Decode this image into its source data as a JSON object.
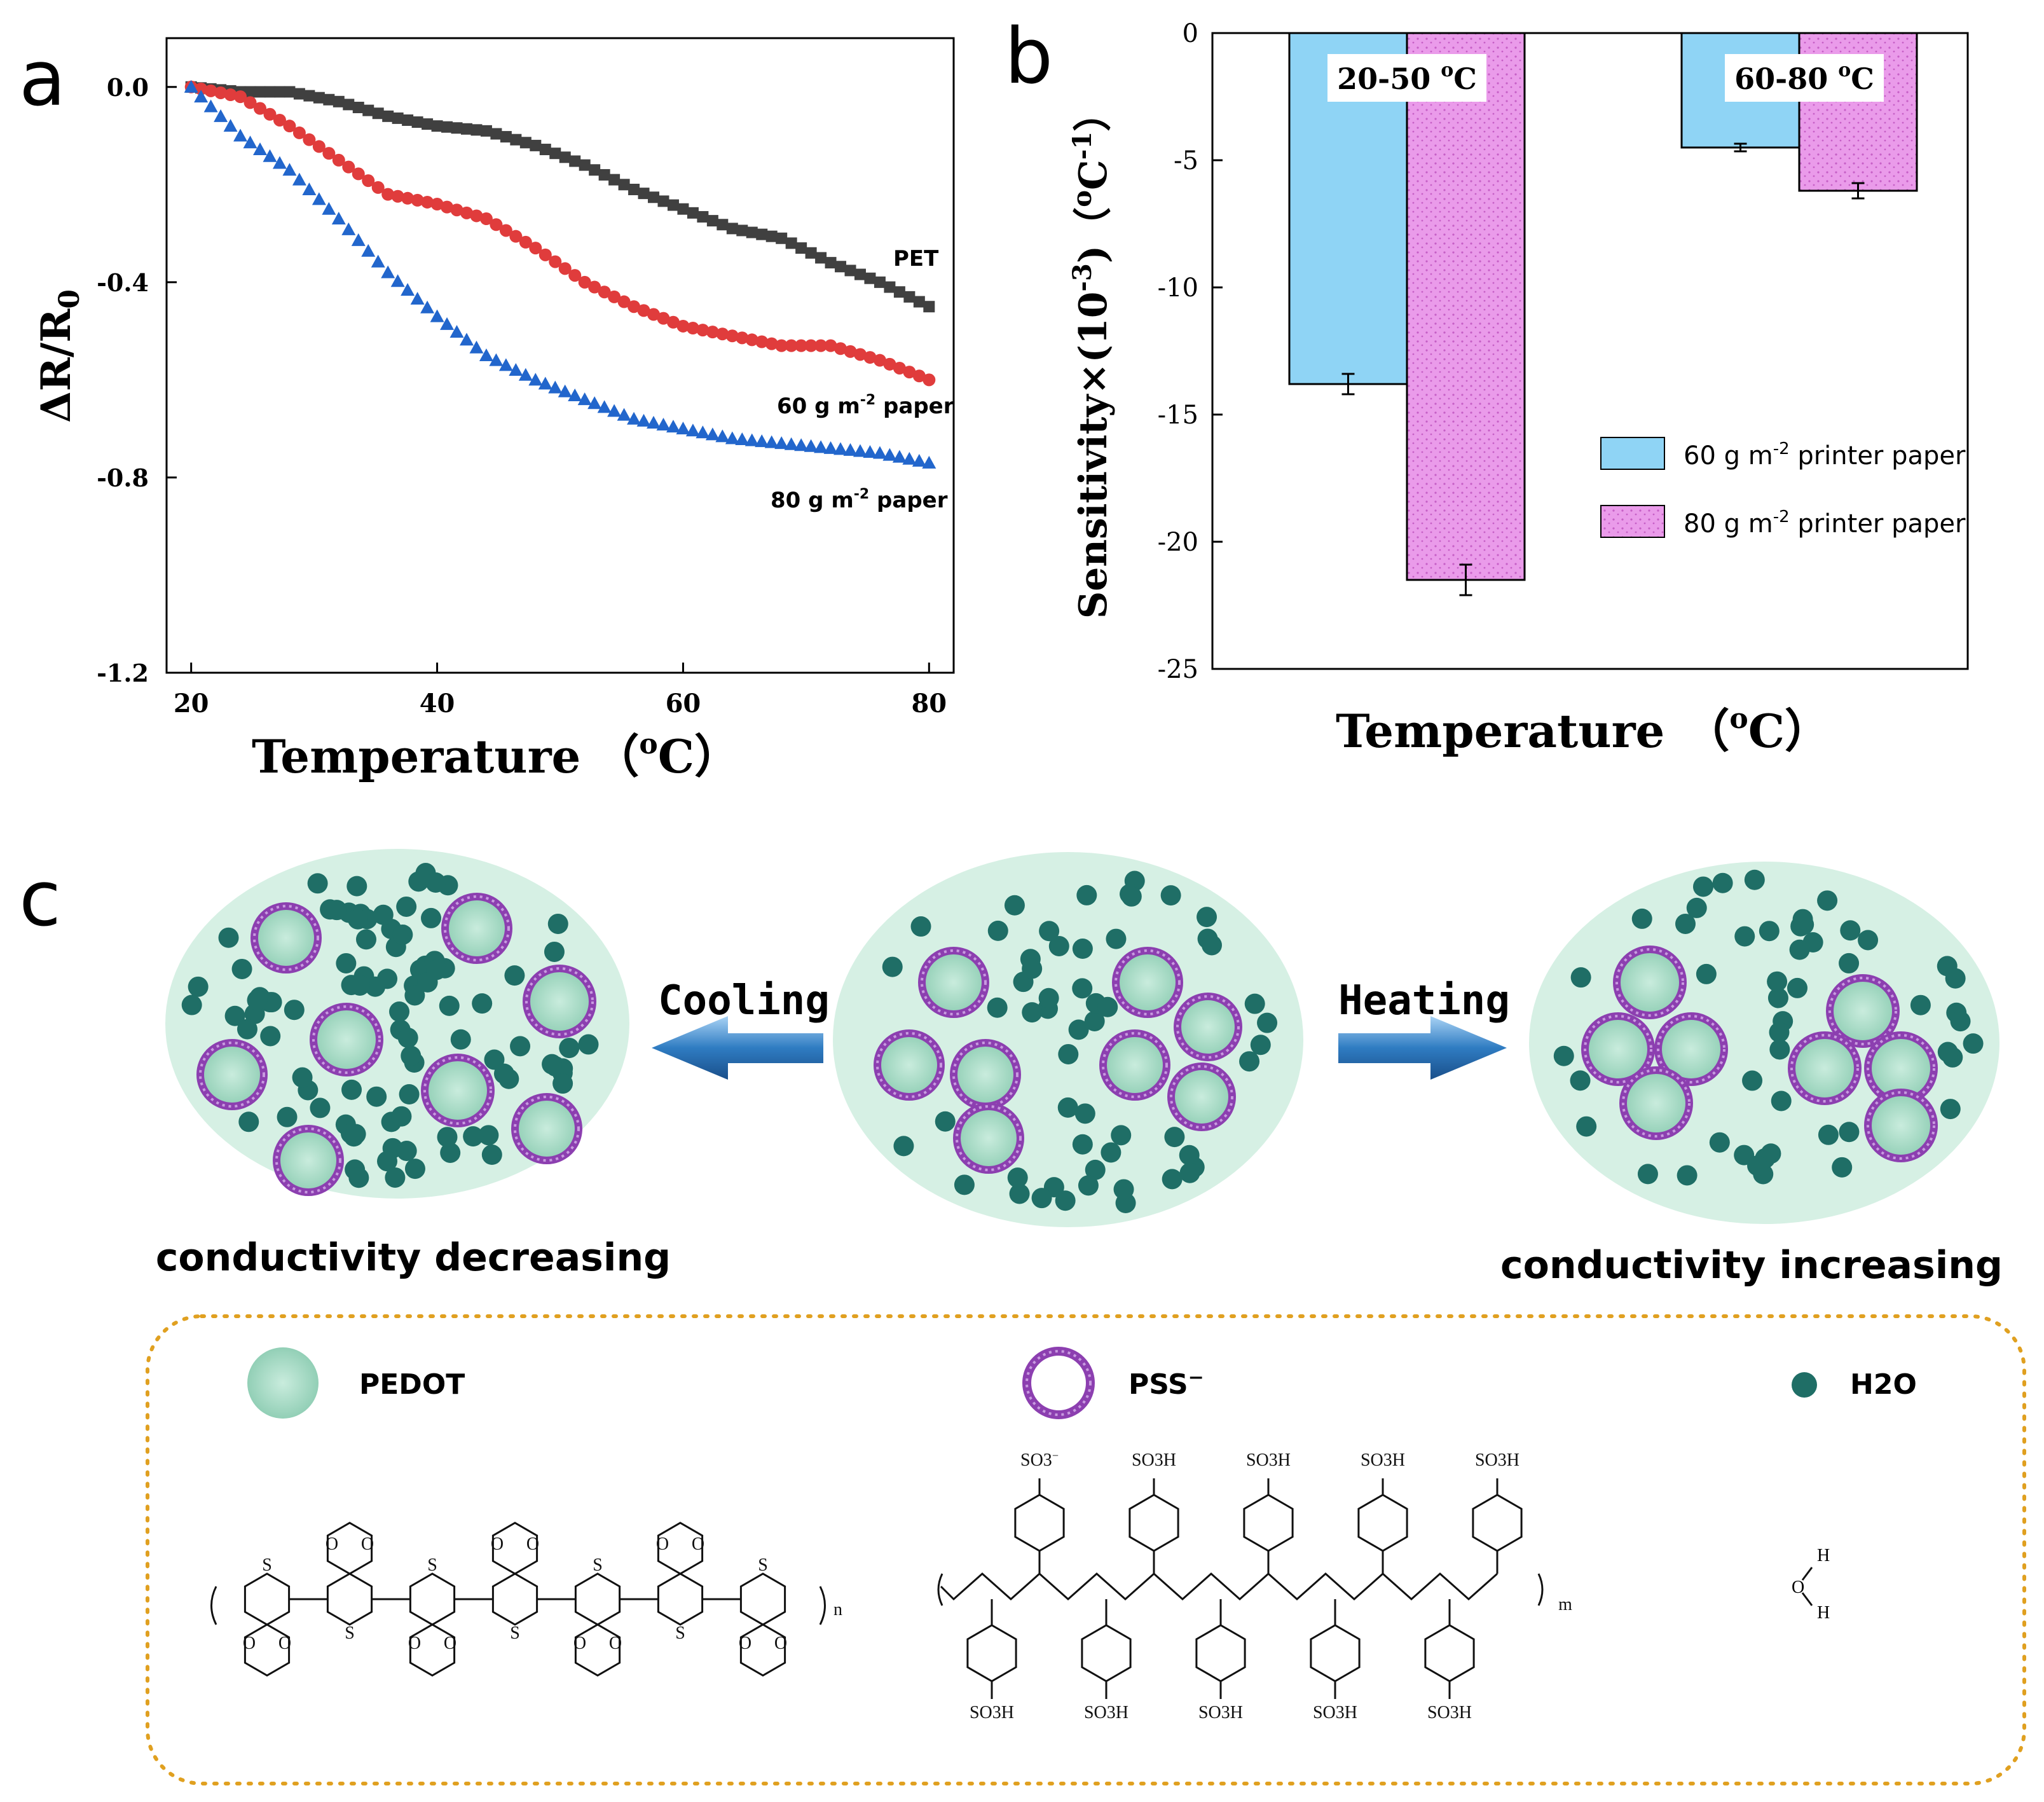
{
  "panels": {
    "a": "a",
    "b": "b",
    "c": "c"
  },
  "chart_data": [
    {
      "type": "scatter",
      "xlabel": "Temperature",
      "xunit": "°C",
      "ylabel": "ΔR/R0",
      "xlim": [
        18,
        82
      ],
      "ylim": [
        -1.2,
        0.1
      ],
      "xticks": [
        20,
        40,
        60,
        80
      ],
      "yticks": [
        0.0,
        -0.4,
        -0.8,
        -1.2
      ],
      "ytick_labels": [
        "0.0",
        "-0.4",
        "-0.8",
        "-1.2"
      ],
      "series": [
        {
          "name": "PET",
          "label": "PET",
          "marker": "square",
          "color": "#404040",
          "x": [
            20,
            24,
            28,
            32,
            36,
            40,
            44,
            48,
            52,
            56,
            60,
            64,
            68,
            72,
            76,
            80
          ],
          "y": [
            0.0,
            -0.01,
            -0.01,
            -0.03,
            -0.06,
            -0.08,
            -0.09,
            -0.12,
            -0.16,
            -0.21,
            -0.25,
            -0.29,
            -0.31,
            -0.36,
            -0.4,
            -0.45
          ]
        },
        {
          "name": "60 g m-2 paper",
          "label_main": "60 g m",
          "label_sup": "-2",
          "label_tail": " paper",
          "marker": "circle",
          "color": "#e03c3c",
          "x": [
            20,
            24,
            28,
            32,
            36,
            40,
            44,
            48,
            52,
            56,
            60,
            64,
            68,
            72,
            76,
            80
          ],
          "y": [
            0.0,
            -0.02,
            -0.08,
            -0.15,
            -0.22,
            -0.24,
            -0.27,
            -0.33,
            -0.4,
            -0.45,
            -0.49,
            -0.51,
            -0.53,
            -0.53,
            -0.56,
            -0.6
          ]
        },
        {
          "name": "80 g m-2 paper",
          "label_main": "80 g m",
          "label_sup": "-2",
          "label_tail": " paper",
          "marker": "triangle",
          "color": "#2266cc",
          "x": [
            20,
            24,
            28,
            32,
            36,
            40,
            44,
            48,
            52,
            56,
            60,
            64,
            68,
            72,
            76,
            80
          ],
          "y": [
            0.0,
            -0.1,
            -0.17,
            -0.27,
            -0.38,
            -0.47,
            -0.55,
            -0.6,
            -0.64,
            -0.68,
            -0.7,
            -0.72,
            -0.73,
            -0.74,
            -0.75,
            -0.77
          ]
        }
      ]
    },
    {
      "type": "bar",
      "xlabel": "Temperature",
      "xunit": "°C",
      "ylabel": "Sensitivity×(10-3)(°C-1)",
      "ylim": [
        -25,
        0
      ],
      "yticks": [
        0,
        -5,
        -10,
        -15,
        -20,
        -25
      ],
      "categories": [
        "20-50 oC",
        "60-80 oC"
      ],
      "category_labels": [
        "20-50 ",
        "60-80 "
      ],
      "series": [
        {
          "name": "60 g m-2 printer paper",
          "label_main": "60 g m",
          "label_sup": "-2",
          "label_tail": " printer paper",
          "color": "#8fd4f5",
          "values": [
            -13.8,
            -4.5
          ],
          "errors": [
            0.4,
            0.15
          ]
        },
        {
          "name": "80 g m-2 printer paper",
          "label_main": "80 g m",
          "label_sup": "-2",
          "label_tail": " printer paper",
          "color": "#ea9bea",
          "values": [
            -21.5,
            -6.2
          ],
          "errors": [
            0.6,
            0.3
          ]
        }
      ]
    }
  ],
  "diagram": {
    "cooling": "Cooling",
    "heating": "Heating",
    "cond_decreasing": "conductivity decreasing",
    "cond_increasing": "conductivity increasing",
    "legend": {
      "pedot": "PEDOT",
      "pss": "PSS",
      "pss_sup": "−",
      "h2o": "H2O"
    },
    "pedot_n": "n",
    "pss_m": "m",
    "so3h": "SO3H",
    "so3_minus": "SO3",
    "water_h": "H",
    "water_o": "O",
    "sulfur": "S",
    "oxygen": "O"
  },
  "colors": {
    "oval": "#d6f0e4",
    "water": "#1f6e66",
    "pedot": "#a8dcc8",
    "pss": "#8c3fb0",
    "arrow": "#2f7cc2",
    "dashed_border": "#e0a020"
  }
}
